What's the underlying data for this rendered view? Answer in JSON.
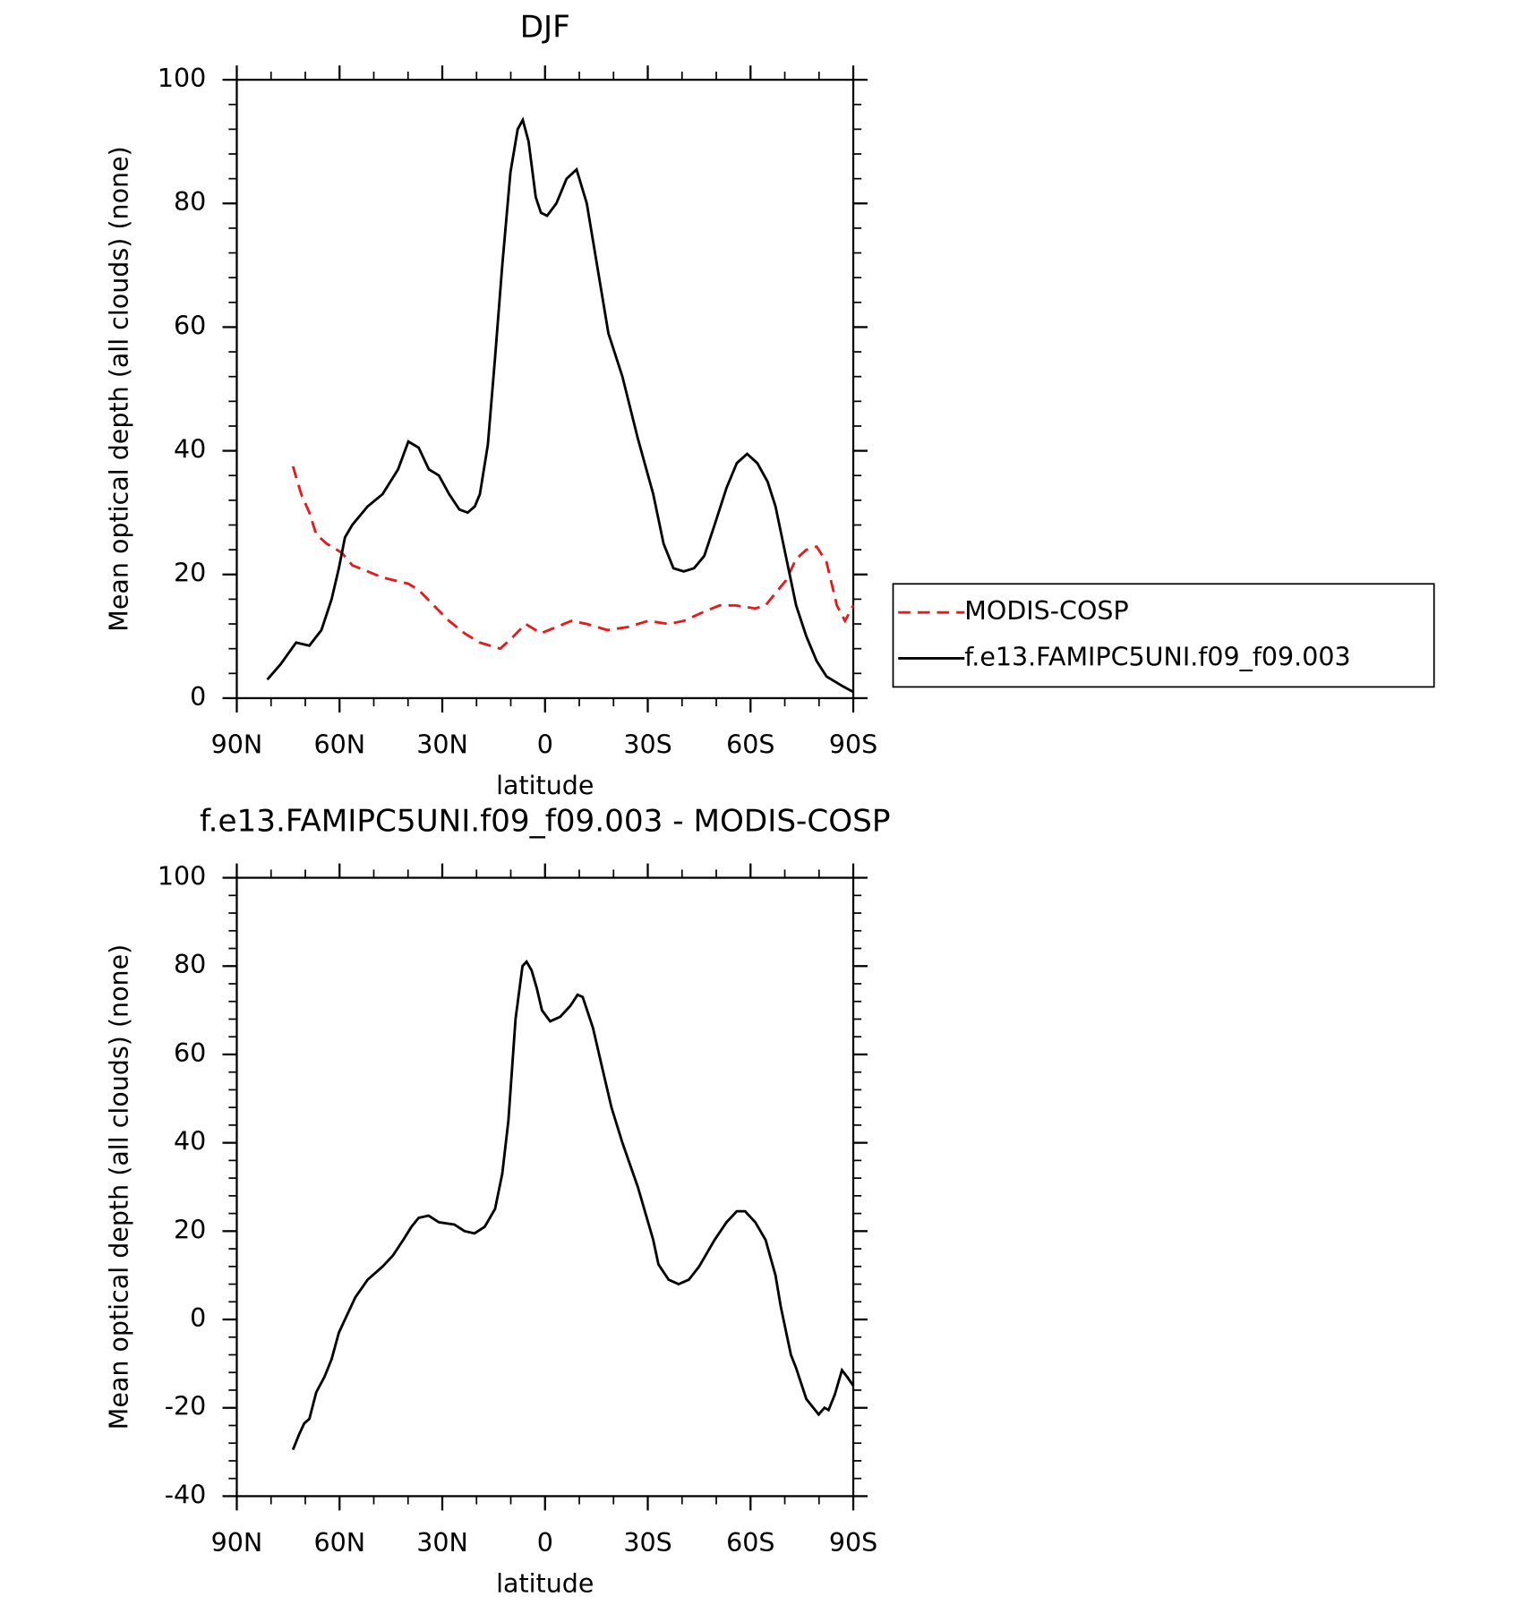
{
  "chart_data": [
    {
      "type": "line",
      "title": "DJF",
      "xlabel": "latitude",
      "ylabel": "Mean optical depth (all clouds) (none)",
      "xlim": [
        90,
        -90
      ],
      "xticks": [
        {
          "value": 90,
          "label": "90N"
        },
        {
          "value": 60,
          "label": "60N"
        },
        {
          "value": 30,
          "label": "30N"
        },
        0,
        {
          "value": -30,
          "label": "30S"
        },
        {
          "value": -60,
          "label": "60S"
        },
        {
          "value": -90,
          "label": "90S"
        }
      ],
      "ylim": [
        0,
        100
      ],
      "yticks": [
        0,
        20,
        40,
        60,
        80,
        100
      ],
      "legend": "right",
      "series": [
        {
          "name": "MODIS-COSP",
          "color": "#e41a1c",
          "dash": true,
          "x": [
            73.6,
            71.2,
            68.8,
            66.8,
            63.8,
            59.3,
            56.3,
            51.8,
            47.4,
            39.9,
            36.9,
            32.5,
            28.0,
            23.5,
            19.1,
            13.1,
            10.1,
            5.7,
            1.2,
            -3.3,
            -7.7,
            -12.2,
            -18.2,
            -24.1,
            -30.1,
            -36.1,
            -40.5,
            -46.5,
            -51.0,
            -55.5,
            -61.4,
            -64.4,
            -67.3,
            -70.3,
            -73.3,
            -76.3,
            -79.3,
            -82.2,
            -85.2,
            -87.6,
            -90
          ],
          "values": [
            37.5,
            33,
            30,
            26.5,
            25,
            23.5,
            21.5,
            20.5,
            19.5,
            18.5,
            17.5,
            15,
            12.5,
            10.5,
            9,
            8,
            9.5,
            12,
            10.5,
            11.5,
            12.5,
            12,
            11,
            11.5,
            12.5,
            12,
            12.5,
            14,
            15,
            15,
            14.5,
            15,
            17,
            19,
            22.5,
            24,
            24.5,
            22,
            15,
            12.5,
            15
          ]
        },
        {
          "name": "f.e13.FAMIPC5UNI.f09_f09.003",
          "color": "#000000",
          "dash": false,
          "x": [
            81.1,
            77.2,
            72.7,
            68.8,
            65.3,
            62.3,
            60.2,
            58.4,
            56.3,
            51.8,
            47.4,
            42.9,
            39.9,
            36.9,
            33.9,
            31.0,
            28.0,
            25.0,
            22.6,
            20.5,
            19.0,
            16.7,
            14.6,
            12.5,
            10.1,
            8.0,
            6.5,
            4.8,
            2.7,
            1.2,
            -0.6,
            -3.3,
            -6.3,
            -9.2,
            -12.2,
            -15.2,
            -18.5,
            -22.6,
            -27.1,
            -31.6,
            -34.6,
            -37.5,
            -40.5,
            -43.5,
            -46.5,
            -49.5,
            -53.0,
            -56.0,
            -59.0,
            -62.0,
            -65.0,
            -67.3,
            -70.3,
            -73.3,
            -76.3,
            -79.3,
            -82.2,
            -85.2,
            -86.7,
            -90
          ],
          "values": [
            3,
            5.5,
            9,
            8.5,
            11,
            16,
            21,
            26,
            28,
            31,
            33,
            37,
            41.5,
            40.5,
            37,
            36,
            33,
            30.5,
            30,
            31,
            33,
            41,
            55,
            70,
            85,
            92,
            93.5,
            90,
            81,
            78.5,
            78,
            80,
            84,
            85.5,
            80,
            70,
            59,
            52,
            42,
            33,
            25,
            21,
            20.5,
            21,
            23,
            28,
            34,
            38,
            39.5,
            38,
            35,
            31,
            23,
            15,
            10,
            6,
            3.5,
            2.5,
            2,
            1
          ]
        }
      ]
    },
    {
      "type": "line",
      "title": "f.e13.FAMIPC5UNI.f09_f09.003 - MODIS-COSP",
      "xlabel": "latitude",
      "ylabel": "Mean optical depth (all clouds) (none)",
      "xlim": [
        90,
        -90
      ],
      "xticks": [
        {
          "value": 90,
          "label": "90N"
        },
        {
          "value": 60,
          "label": "60N"
        },
        {
          "value": 30,
          "label": "30N"
        },
        0,
        {
          "value": -30,
          "label": "30S"
        },
        {
          "value": -60,
          "label": "60S"
        },
        {
          "value": -90,
          "label": "90S"
        }
      ],
      "ylim": [
        -40,
        100
      ],
      "yticks": [
        -40,
        -20,
        0,
        20,
        40,
        60,
        80,
        100
      ],
      "color": "#000000",
      "x": [
        73.6,
        71.8,
        70.3,
        68.8,
        66.8,
        64.4,
        62.3,
        60.2,
        57.8,
        55.4,
        51.8,
        47.4,
        44.4,
        41.4,
        39.0,
        36.9,
        34.0,
        31.0,
        26.5,
        23.5,
        20.6,
        17.6,
        14.6,
        12.5,
        10.7,
        8.6,
        6.6,
        5.4,
        3.9,
        2.4,
        0.9,
        -1.5,
        -4.4,
        -7.4,
        -9.5,
        -11.0,
        -14.0,
        -17.0,
        -19.4,
        -22.6,
        -27.1,
        -31.6,
        -33.1,
        -36.1,
        -39.0,
        -42.0,
        -45.0,
        -49.5,
        -53.0,
        -56.0,
        -58.4,
        -61.4,
        -64.4,
        -67.3,
        -68.8,
        -71.8,
        -73.3,
        -76.3,
        -79.9,
        -81.6,
        -82.8,
        -84.6,
        -86.7,
        -88.2,
        -90
      ],
      "values": [
        -29.5,
        -26,
        -23.5,
        -22.5,
        -16.5,
        -13,
        -9,
        -3,
        1,
        5,
        9,
        12,
        14.5,
        18,
        21,
        23,
        23.5,
        22,
        21.5,
        20,
        19.5,
        21,
        25,
        33,
        45,
        68,
        80,
        81,
        79,
        75,
        70,
        67.5,
        68.5,
        71,
        73.5,
        73,
        66,
        56,
        48,
        40,
        30,
        18,
        12.5,
        9,
        8,
        9,
        12,
        18,
        22,
        24.5,
        24.5,
        22,
        18,
        10,
        3,
        -8,
        -11,
        -18,
        -21.5,
        -20,
        -20.5,
        -17,
        -11.5,
        -13,
        -15
      ]
    }
  ]
}
